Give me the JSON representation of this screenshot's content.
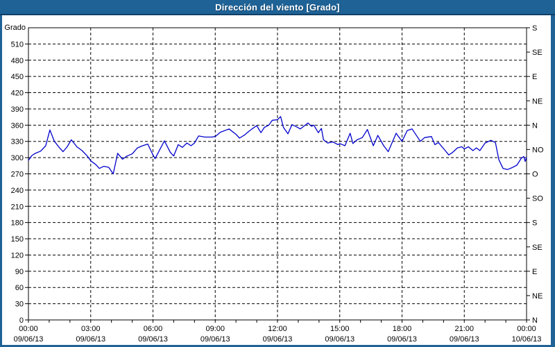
{
  "window": {
    "title": "Dirección del viento [Grado]"
  },
  "colors": {
    "titlebar_bg": "#1e6296",
    "titlebar_text": "#ffffff",
    "window_border": "#1e6296",
    "plot_background": "#ffffff",
    "axis_frame": "#000000",
    "gridline": "#000000",
    "series_line": "#0000cc",
    "tick_text": "#000000"
  },
  "chart_data": {
    "type": "line",
    "title": "Dirección del viento [Grado]",
    "grid": "dashed",
    "legend_position": "none",
    "y_axis_left": {
      "label": "Grado",
      "min": 0,
      "max": 540,
      "tick_step": 30,
      "tick_labels": [
        "0",
        "30",
        "60",
        "90",
        "120",
        "150",
        "180",
        "210",
        "240",
        "270",
        "300",
        "330",
        "360",
        "390",
        "420",
        "450",
        "480",
        "510"
      ]
    },
    "y_axis_right": {
      "tick_step": 45,
      "tick_values": [
        0,
        45,
        90,
        135,
        180,
        225,
        270,
        315,
        360,
        405,
        450,
        495,
        540
      ],
      "tick_labels": [
        "N",
        "NE",
        "E",
        "SE",
        "S",
        "SO",
        "O",
        "NO",
        "N",
        "NE",
        "E",
        "SE",
        "S"
      ]
    },
    "x_axis": {
      "min_minutes": 0,
      "max_minutes": 1440,
      "major_step_minutes": 180,
      "minor_step_minutes": 60,
      "tick_labels": [
        {
          "time": "00:00",
          "date": "09/06/13"
        },
        {
          "time": "03:00",
          "date": "09/06/13"
        },
        {
          "time": "06:00",
          "date": "09/06/13"
        },
        {
          "time": "09:00",
          "date": "09/06/13"
        },
        {
          "time": "12:00",
          "date": "09/06/13"
        },
        {
          "time": "15:00",
          "date": "09/06/13"
        },
        {
          "time": "18:00",
          "date": "09/06/13"
        },
        {
          "time": "21:00",
          "date": "09/06/13"
        },
        {
          "time": "00:00",
          "date": "10/06/13"
        }
      ]
    },
    "series": [
      {
        "name": "Dirección del viento",
        "unit": "Grado",
        "color": "#0000cc",
        "points": [
          [
            0,
            295
          ],
          [
            10,
            304
          ],
          [
            20,
            308
          ],
          [
            35,
            312
          ],
          [
            50,
            322
          ],
          [
            62,
            351
          ],
          [
            75,
            330
          ],
          [
            90,
            318
          ],
          [
            100,
            311
          ],
          [
            112,
            320
          ],
          [
            124,
            333
          ],
          [
            140,
            320
          ],
          [
            155,
            313
          ],
          [
            170,
            303
          ],
          [
            180,
            294
          ],
          [
            195,
            287
          ],
          [
            205,
            280
          ],
          [
            218,
            284
          ],
          [
            232,
            282
          ],
          [
            245,
            270
          ],
          [
            258,
            308
          ],
          [
            272,
            297
          ],
          [
            285,
            303
          ],
          [
            300,
            307
          ],
          [
            315,
            318
          ],
          [
            330,
            322
          ],
          [
            345,
            325
          ],
          [
            360,
            305
          ],
          [
            366,
            298
          ],
          [
            393,
            331
          ],
          [
            410,
            310
          ],
          [
            420,
            303
          ],
          [
            433,
            324
          ],
          [
            445,
            319
          ],
          [
            458,
            327
          ],
          [
            470,
            322
          ],
          [
            480,
            327
          ],
          [
            492,
            340
          ],
          [
            510,
            338
          ],
          [
            530,
            338
          ],
          [
            540,
            339
          ],
          [
            555,
            347
          ],
          [
            580,
            353
          ],
          [
            600,
            343
          ],
          [
            610,
            336
          ],
          [
            625,
            342
          ],
          [
            640,
            350
          ],
          [
            655,
            357
          ],
          [
            660,
            359
          ],
          [
            672,
            346
          ],
          [
            682,
            356
          ],
          [
            695,
            360
          ],
          [
            705,
            369
          ],
          [
            720,
            370
          ],
          [
            729,
            376
          ],
          [
            737,
            356
          ],
          [
            750,
            344
          ],
          [
            762,
            361
          ],
          [
            775,
            357
          ],
          [
            786,
            353
          ],
          [
            808,
            364
          ],
          [
            818,
            358
          ],
          [
            825,
            360
          ],
          [
            838,
            346
          ],
          [
            847,
            354
          ],
          [
            853,
            333
          ],
          [
            865,
            327
          ],
          [
            880,
            329
          ],
          [
            895,
            324
          ],
          [
            900,
            326
          ],
          [
            915,
            322
          ],
          [
            930,
            345
          ],
          [
            938,
            326
          ],
          [
            950,
            333
          ],
          [
            965,
            337
          ],
          [
            980,
            352
          ],
          [
            997,
            322
          ],
          [
            1010,
            341
          ],
          [
            1027,
            322
          ],
          [
            1040,
            311
          ],
          [
            1055,
            333
          ],
          [
            1063,
            345
          ],
          [
            1080,
            330
          ],
          [
            1095,
            350
          ],
          [
            1109,
            353
          ],
          [
            1133,
            330
          ],
          [
            1145,
            337
          ],
          [
            1165,
            339
          ],
          [
            1175,
            324
          ],
          [
            1185,
            328
          ],
          [
            1205,
            313
          ],
          [
            1215,
            305
          ],
          [
            1225,
            309
          ],
          [
            1240,
            318
          ],
          [
            1253,
            320
          ],
          [
            1260,
            316
          ],
          [
            1272,
            320
          ],
          [
            1285,
            313
          ],
          [
            1295,
            318
          ],
          [
            1305,
            313
          ],
          [
            1320,
            327
          ],
          [
            1337,
            332
          ],
          [
            1350,
            328
          ],
          [
            1360,
            296
          ],
          [
            1372,
            280
          ],
          [
            1385,
            278
          ],
          [
            1400,
            282
          ],
          [
            1412,
            286
          ],
          [
            1425,
            299
          ],
          [
            1432,
            302
          ],
          [
            1436,
            293
          ],
          [
            1440,
            300
          ]
        ]
      }
    ]
  }
}
